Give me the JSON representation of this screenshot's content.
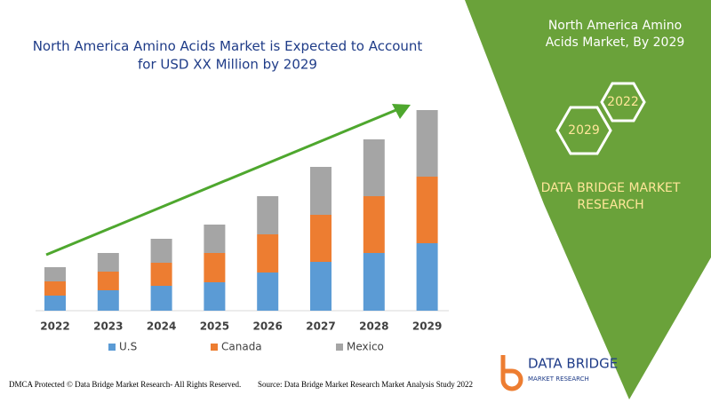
{
  "chart_data": {
    "type": "stacked-bar",
    "title": "North America Amino Acids Market is Expected to Account for USD XX Million by 2029",
    "categories": [
      "2022",
      "2023",
      "2024",
      "2025",
      "2026",
      "2027",
      "2028",
      "2029"
    ],
    "series": [
      {
        "name": "U.S",
        "color": "#5b9bd5",
        "values": [
          17,
          23,
          28,
          32,
          43,
          55,
          65,
          76
        ]
      },
      {
        "name": "Canada",
        "color": "#ed7d31",
        "values": [
          16,
          21,
          26,
          33,
          43,
          53,
          64,
          75
        ]
      },
      {
        "name": "Mexico",
        "color": "#a5a5a5",
        "values": [
          16,
          21,
          27,
          32,
          43,
          54,
          64,
          75
        ]
      }
    ]
  },
  "panel": {
    "title": "North America Amino Acids Market, By 2029",
    "hexagons": [
      "2022",
      "2029"
    ],
    "brand": "DATA BRIDGE MARKET RESEARCH"
  },
  "logo": {
    "text": "DATA BRIDGE",
    "subtext": "MARKET RESEARCH"
  },
  "footer": {
    "left": "DMCA Protected © Data Bridge Market Research- All Rights Reserved.",
    "right": "Source: Data Bridge Market Research Market Analysis Study 2022"
  }
}
